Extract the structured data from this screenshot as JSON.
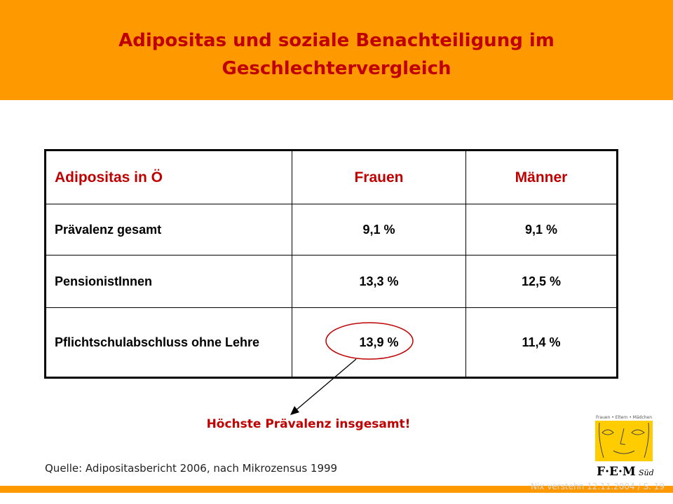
{
  "slide": {
    "title_line1": "Adipositas und soziale Benachteiligung im",
    "title_line2": "Geschlechtervergleich",
    "header_color": "#ff9900",
    "accent_color": "#c00000"
  },
  "table": {
    "headers": [
      "Adipositas in Ö",
      "Frauen",
      "Männer"
    ],
    "rows": [
      [
        "Prävalenz gesamt",
        "9,1 %",
        "9,1 %"
      ],
      [
        "PensionistInnen",
        "13,3 %",
        "12,5 %"
      ],
      [
        "Pflichtschulabschluss ohne Lehre",
        "13,9 %",
        "11,4 %"
      ]
    ]
  },
  "callout": {
    "text": "Höchste Prävalenz insgesamt!"
  },
  "source": "Quelle: Adipositasbericht 2006, nach Mikrozensus 1999",
  "logo": {
    "tagline": "Frauen • Eltern • Mädchen",
    "text": "F·E·M",
    "suffix": "Süd"
  },
  "footer": "Nix verstehn 12.11.2004 / S. 19"
}
